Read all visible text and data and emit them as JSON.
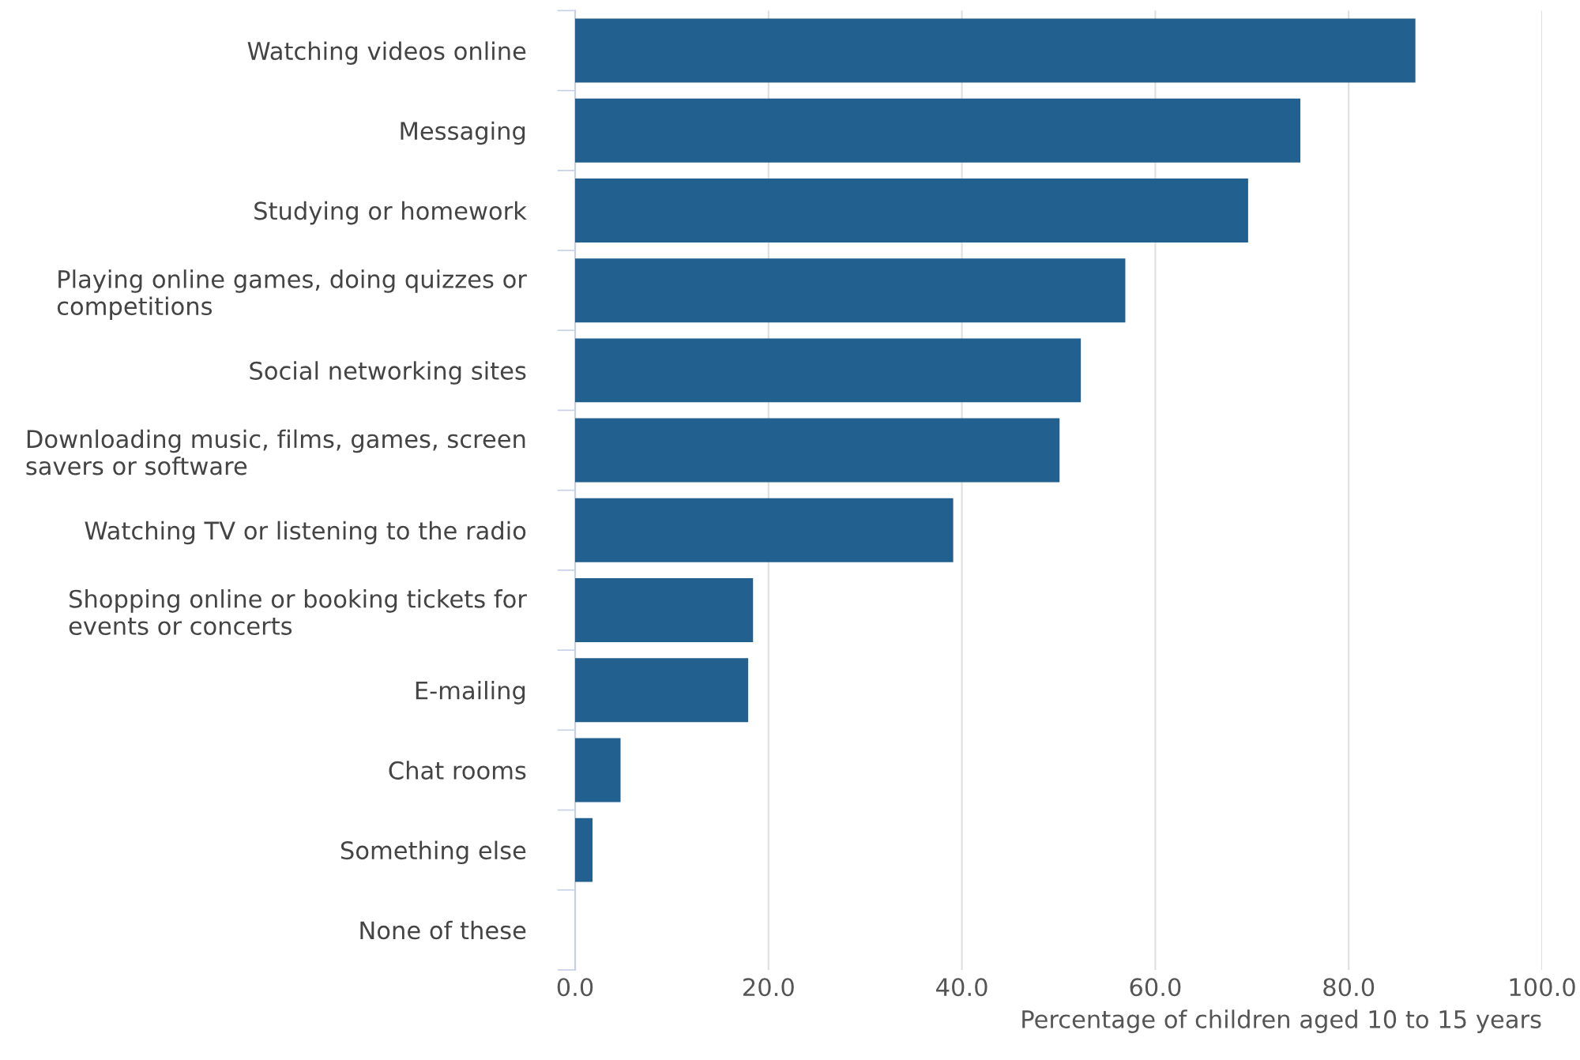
{
  "chart_data": {
    "type": "bar",
    "orientation": "horizontal",
    "xlabel": "Percentage of children aged 10 to 15 years",
    "categories": [
      "Watching videos online",
      "Messaging",
      "Studying or homework",
      "Playing online games, doing quizzes or\ncompetitions",
      "Social networking sites",
      "Downloading music, films, games, screen\nsavers or software",
      "Watching TV or listening to the radio",
      "Shopping online or booking tickets for\nevents or concerts",
      "E-mailing",
      "Chat rooms",
      "Something else",
      "None of these"
    ],
    "values": [
      86.9,
      75.0,
      69.6,
      56.9,
      52.3,
      50.1,
      39.1,
      18.4,
      17.9,
      4.7,
      1.8,
      0
    ],
    "color": "#22608f",
    "xlim": [
      0,
      100
    ],
    "xticks": [
      {
        "value": 0,
        "label": "0.0"
      },
      {
        "value": 20,
        "label": "20.0"
      },
      {
        "value": 40,
        "label": "40.0"
      },
      {
        "value": 60,
        "label": "60.0"
      },
      {
        "value": 80,
        "label": "80.0"
      },
      {
        "value": 100,
        "label": "100.0"
      }
    ],
    "grid": "x",
    "legend": false
  }
}
